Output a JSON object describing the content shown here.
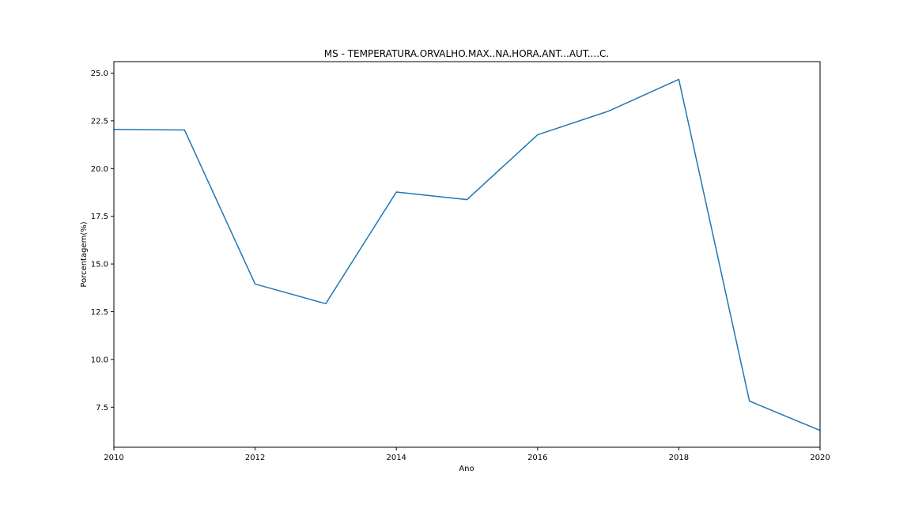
{
  "chart_data": {
    "type": "line",
    "title": "MS - TEMPERATURA.ORVALHO.MAX..NA.HORA.ANT...AUT....C.",
    "xlabel": "Ano",
    "ylabel": "Porcentagem(%)",
    "x": [
      2010,
      2011,
      2012,
      2013,
      2014,
      2015,
      2016,
      2017,
      2018,
      2019,
      2020
    ],
    "series": [
      {
        "name": "MS",
        "color": "#1f77b4",
        "values": [
          22.05,
          22.02,
          13.95,
          12.92,
          18.77,
          18.37,
          21.77,
          23.0,
          24.67,
          7.82,
          6.28
        ]
      }
    ],
    "xlim": [
      2010,
      2020
    ],
    "ylim": [
      5.4,
      25.6
    ],
    "xticks": [
      2010,
      2012,
      2014,
      2016,
      2018,
      2020
    ],
    "xtick_labels": [
      "2010",
      "2012",
      "2014",
      "2016",
      "2018",
      "2020"
    ],
    "yticks": [
      7.5,
      10.0,
      12.5,
      15.0,
      17.5,
      20.0,
      22.5,
      25.0
    ],
    "ytick_labels": [
      "7.5",
      "10.0",
      "12.5",
      "15.0",
      "17.5",
      "20.0",
      "22.5",
      "25.0"
    ],
    "grid": false,
    "legend": "none"
  }
}
